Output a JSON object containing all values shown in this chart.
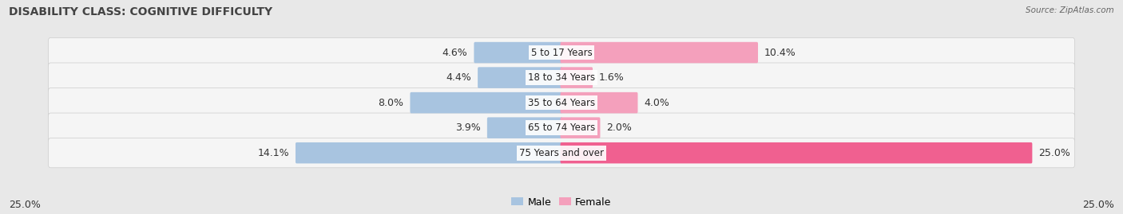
{
  "title": "DISABILITY CLASS: COGNITIVE DIFFICULTY",
  "source": "Source: ZipAtlas.com",
  "categories": [
    "5 to 17 Years",
    "18 to 34 Years",
    "35 to 64 Years",
    "65 to 74 Years",
    "75 Years and over"
  ],
  "male_values": [
    4.6,
    4.4,
    8.0,
    3.9,
    14.1
  ],
  "female_values": [
    10.4,
    1.6,
    4.0,
    2.0,
    25.0
  ],
  "male_color": "#a8c4e0",
  "female_color_normal": "#f4a0bc",
  "female_color_highlight": "#f06090",
  "male_label": "Male",
  "female_label": "Female",
  "axis_max": 25.0,
  "x_left_label": "25.0%",
  "x_right_label": "25.0%",
  "bg_color": "#e8e8e8",
  "row_bg_color": "#f5f5f5",
  "title_fontsize": 10,
  "label_fontsize": 9,
  "category_fontsize": 8.5
}
